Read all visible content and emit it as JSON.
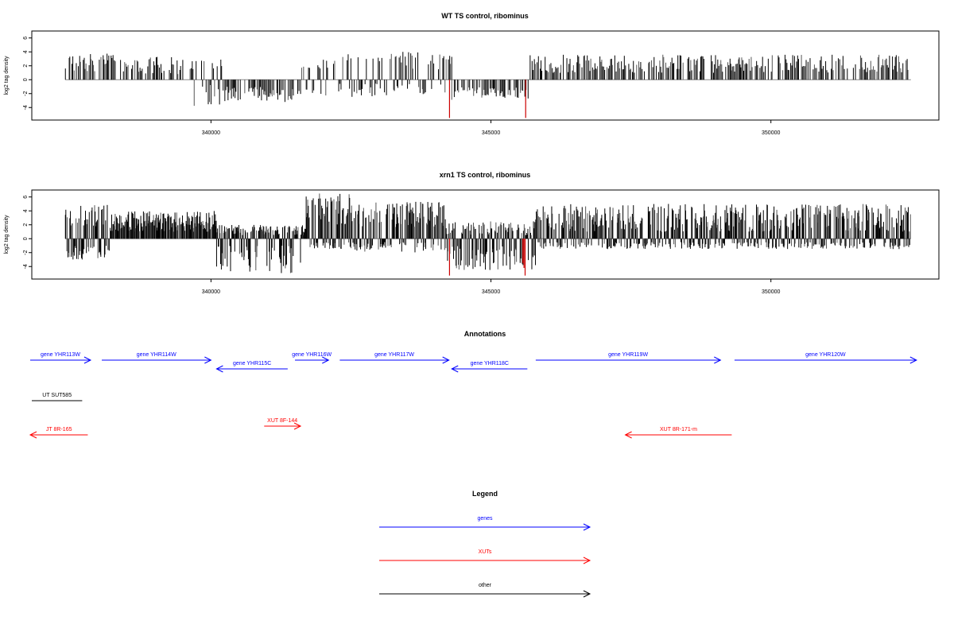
{
  "chart_data": [
    {
      "type": "bar",
      "title": "WT TS control, ribominus",
      "ylabel": "log2 tag density",
      "xlim": [
        336800,
        353000
      ],
      "ylim": [
        -5.8,
        7.0
      ],
      "yticks": [
        -4,
        -2,
        0,
        2,
        4,
        6
      ],
      "xticks": [
        340000,
        345000,
        350000
      ],
      "highlight_color": "#cc0000",
      "density_level": 0.45,
      "profile": [
        {
          "from": 337400,
          "to": 338400,
          "pos": [
            1.2,
            3.8
          ]
        },
        {
          "from": 338400,
          "to": 339700,
          "pos": [
            0.8,
            3.3
          ]
        },
        {
          "from": 339700,
          "to": 340200,
          "pos": [
            1.5,
            3.0
          ],
          "neg": [
            0.5,
            4.0
          ]
        },
        {
          "from": 340200,
          "to": 341600,
          "neg": [
            1.0,
            3.2
          ]
        },
        {
          "from": 341600,
          "to": 342300,
          "pos": [
            1.0,
            3.0
          ],
          "neg": [
            0.5,
            2.5
          ]
        },
        {
          "from": 342300,
          "to": 344300,
          "pos": [
            1.5,
            4.0
          ],
          "neg": [
            0.5,
            2.5
          ]
        },
        {
          "from": 344300,
          "to": 345700,
          "neg": [
            1.0,
            3.0
          ]
        },
        {
          "from": 345700,
          "to": 352500,
          "pos": [
            1.0,
            3.6
          ]
        }
      ],
      "highlights": [
        {
          "x": 344260,
          "y": -5.5
        },
        {
          "x": 345620,
          "y": -5.5
        }
      ]
    },
    {
      "type": "bar",
      "title": "xrn1 TS control, ribominus",
      "ylabel": "log2 tag density",
      "xlim": [
        336800,
        353000
      ],
      "ylim": [
        -5.8,
        7.0
      ],
      "yticks": [
        -4,
        -2,
        0,
        2,
        4,
        6
      ],
      "xticks": [
        340000,
        345000,
        350000
      ],
      "highlight_color": "#cc0000",
      "density_level": 0.9,
      "profile": [
        {
          "from": 337400,
          "to": 338200,
          "pos": [
            1.5,
            5.0
          ],
          "neg": [
            1.0,
            3.0
          ]
        },
        {
          "from": 338200,
          "to": 340100,
          "pos": [
            1.0,
            4.0
          ]
        },
        {
          "from": 340100,
          "to": 341700,
          "pos": [
            0.5,
            2.0
          ],
          "neg": [
            1.0,
            5.0
          ]
        },
        {
          "from": 341700,
          "to": 342500,
          "pos": [
            2.0,
            6.5
          ],
          "neg": [
            0.5,
            1.5
          ]
        },
        {
          "from": 342500,
          "to": 344200,
          "pos": [
            1.5,
            5.5
          ],
          "neg": [
            0.5,
            2.0
          ]
        },
        {
          "from": 344200,
          "to": 345800,
          "pos": [
            0.5,
            2.5
          ],
          "neg": [
            1.0,
            4.5
          ]
        },
        {
          "from": 345800,
          "to": 352500,
          "pos": [
            1.0,
            5.0
          ],
          "neg": [
            0.5,
            1.5
          ]
        }
      ],
      "highlights": [
        {
          "x": 344260,
          "y": -5.3
        },
        {
          "x": 345610,
          "y": -5.3
        },
        {
          "x": 345590,
          "y": -4.2
        },
        {
          "x": 345570,
          "y": -3.5
        }
      ]
    }
  ],
  "annotations": {
    "title": "Annotations",
    "colors": {
      "genes": "#0000ff",
      "XUTs": "#ff0000",
      "other": "#000000"
    },
    "features": [
      {
        "label": "gene YHR113W",
        "kind": "genes",
        "strand": "+",
        "row": 0,
        "start": 336400,
        "end": 337850
      },
      {
        "label": "gene YHR114W",
        "kind": "genes",
        "strand": "+",
        "row": 0,
        "start": 338050,
        "end": 340000
      },
      {
        "label": "gene YHR115C",
        "kind": "genes",
        "strand": "-",
        "row": 1,
        "start": 340100,
        "end": 341370
      },
      {
        "label": "gene YHR116W",
        "kind": "genes",
        "strand": "+",
        "row": 0,
        "start": 341500,
        "end": 342100
      },
      {
        "label": "gene YHR117W",
        "kind": "genes",
        "strand": "+",
        "row": 0,
        "start": 342300,
        "end": 344250
      },
      {
        "label": "gene YHR118C",
        "kind": "genes",
        "strand": "-",
        "row": 1,
        "start": 344300,
        "end": 345650
      },
      {
        "label": "gene YHR119W",
        "kind": "genes",
        "strand": "+",
        "row": 0,
        "start": 345800,
        "end": 349100
      },
      {
        "label": "gene YHR120W",
        "kind": "genes",
        "strand": "+",
        "row": 0,
        "start": 349350,
        "end": 352600
      },
      {
        "label": "UT SUT585",
        "kind": "other",
        "strand": ".",
        "row": 4,
        "start": 336800,
        "end": 337700
      },
      {
        "label": "XUT 8F-144",
        "kind": "XUTs",
        "strand": "+",
        "row": 5,
        "start": 340950,
        "end": 341600
      },
      {
        "label": "JT 8R-165",
        "kind": "XUTs",
        "strand": "-",
        "row": 6,
        "start": 336500,
        "end": 337800
      },
      {
        "label": "XUT 8R-171-m",
        "kind": "XUTs",
        "strand": "-",
        "row": 6,
        "start": 347400,
        "end": 349300
      }
    ]
  },
  "legend": {
    "title": "Legend",
    "items": [
      {
        "label": "genes",
        "kind": "genes"
      },
      {
        "label": "XUTs",
        "kind": "XUTs"
      },
      {
        "label": "other",
        "kind": "other"
      }
    ]
  }
}
